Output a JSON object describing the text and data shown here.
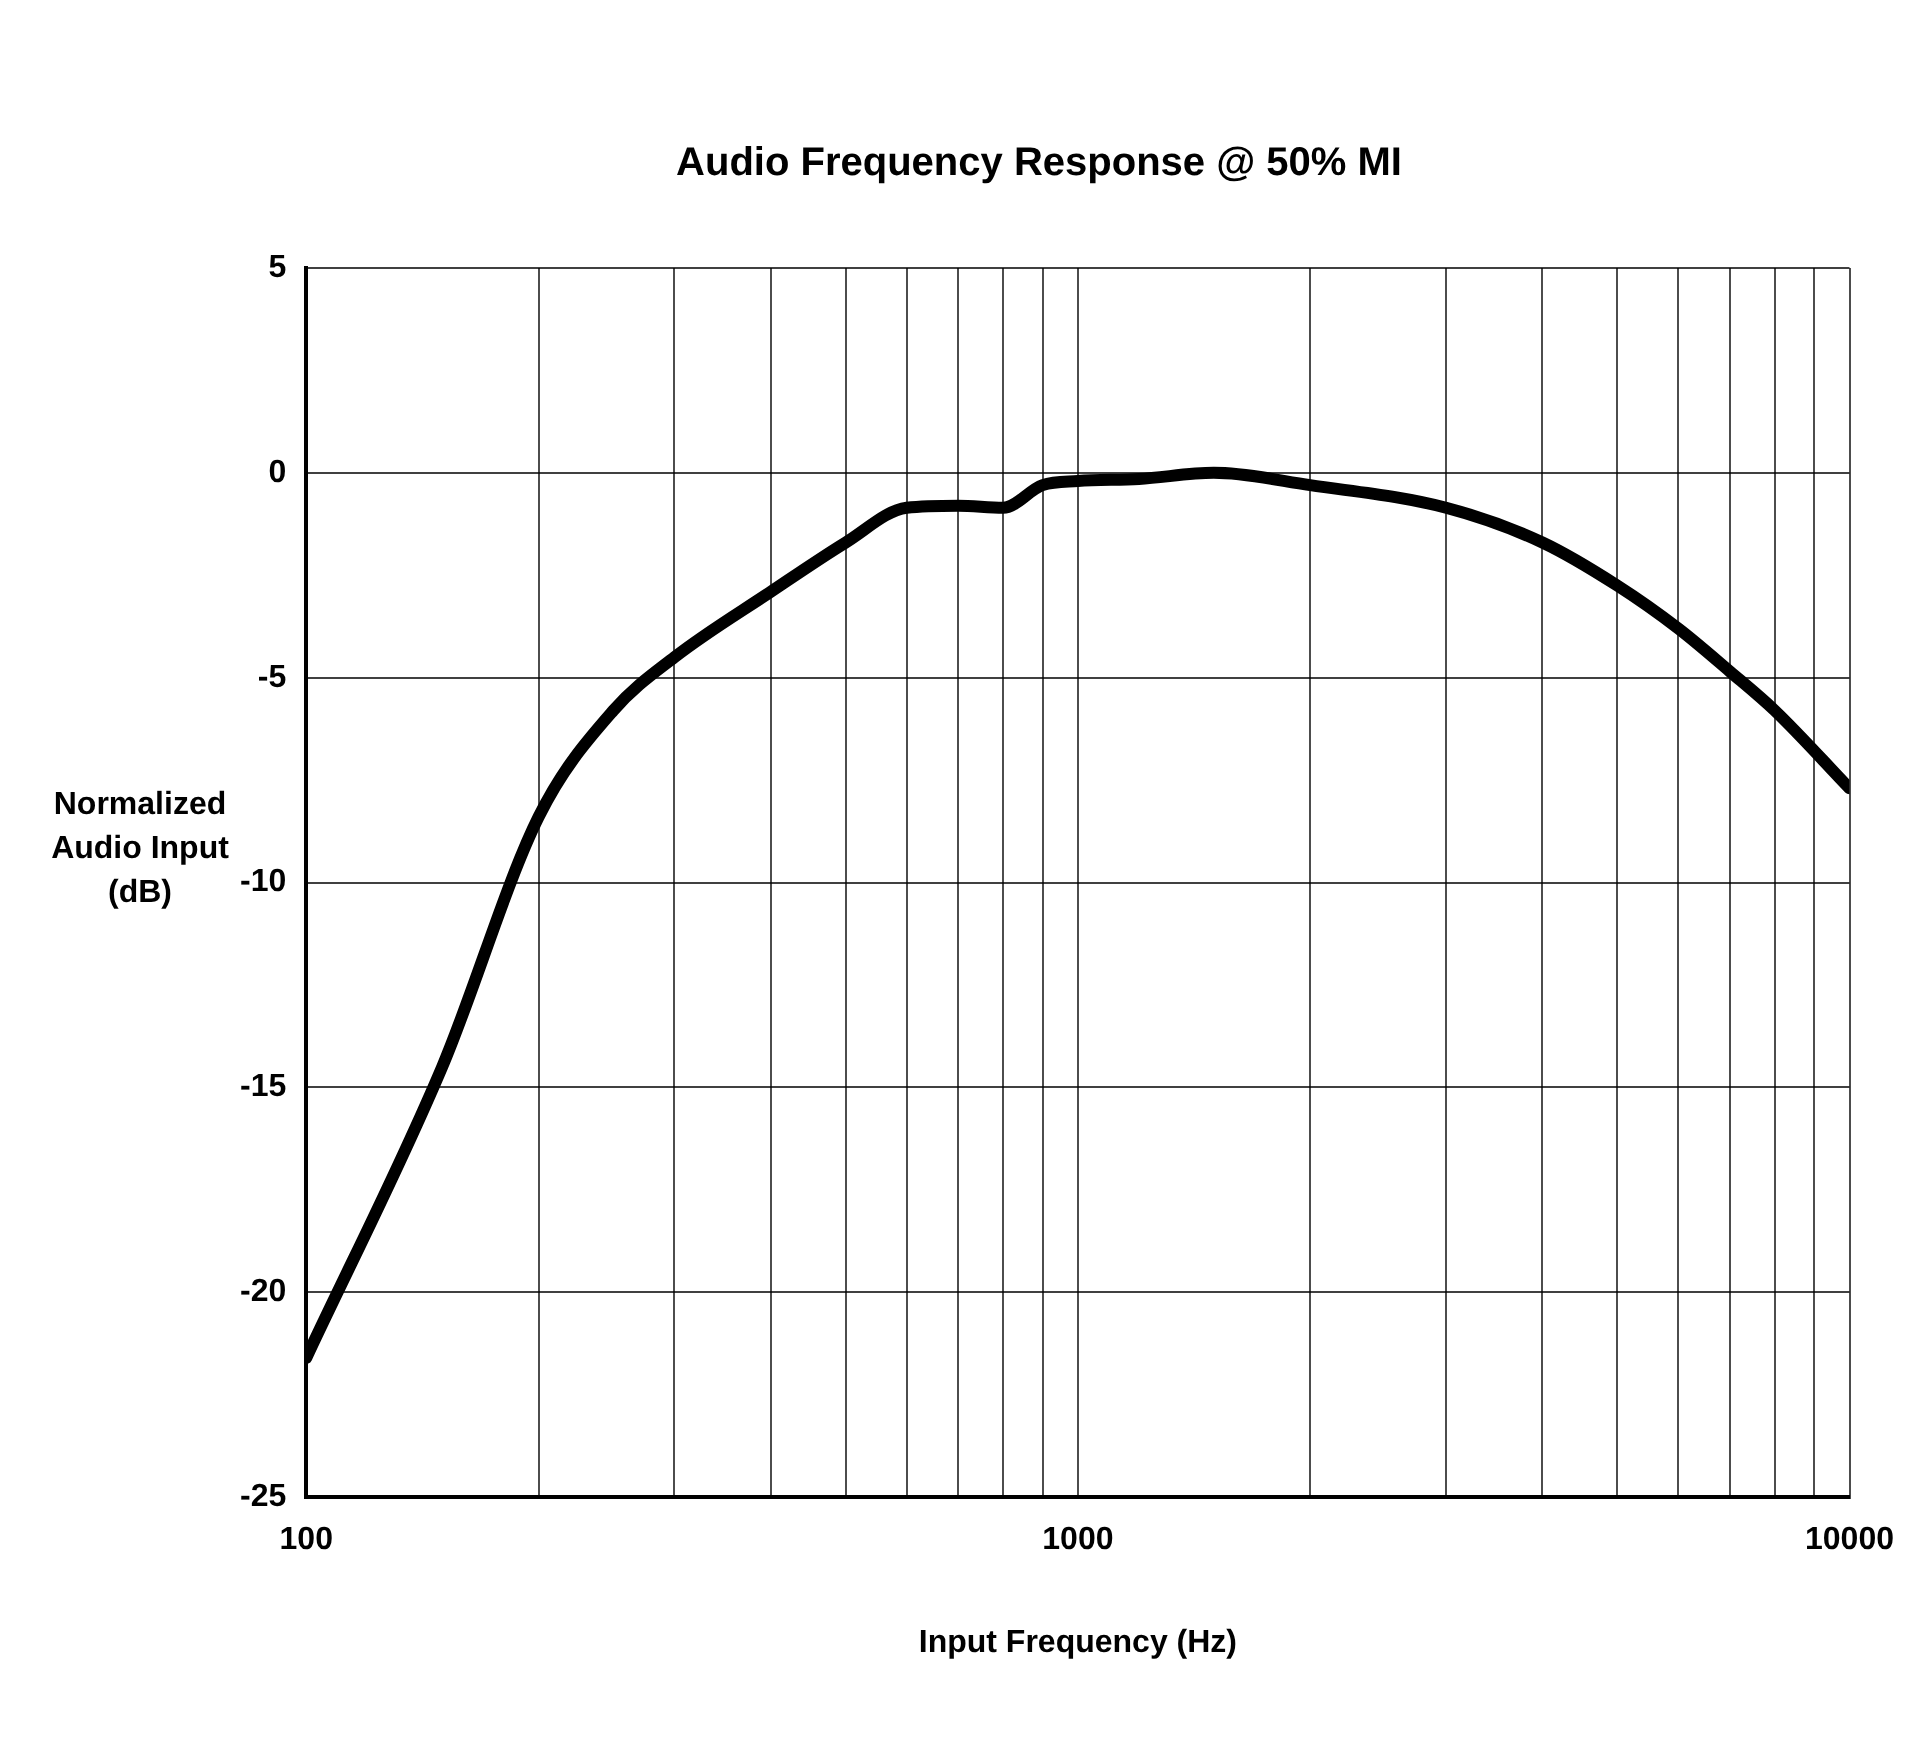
{
  "chart_data": {
    "type": "line",
    "title": "Audio Frequency Response @ 50% MI",
    "xlabel": "Input Frequency (Hz)",
    "ylabel": "Normalized Audio Input (dB)",
    "log": "x",
    "grid": true,
    "legend": false,
    "marker": "none",
    "line_style": "solid",
    "xlim": [
      100,
      10000
    ],
    "ylim": [
      -25,
      5
    ],
    "xticks": [
      100,
      {
        "value": 200,
        "label": null
      },
      {
        "value": 300,
        "label": null
      },
      {
        "value": 400,
        "label": null
      },
      {
        "value": 500,
        "label": null
      },
      {
        "value": 600,
        "label": null
      },
      {
        "value": 700,
        "label": null
      },
      {
        "value": 800,
        "label": null
      },
      {
        "value": 900,
        "label": null
      },
      1000,
      {
        "value": 2000,
        "label": null
      },
      {
        "value": 3000,
        "label": null
      },
      {
        "value": 4000,
        "label": null
      },
      {
        "value": 5000,
        "label": null
      },
      {
        "value": 6000,
        "label": null
      },
      {
        "value": 7000,
        "label": null
      },
      {
        "value": 8000,
        "label": null
      },
      {
        "value": 9000,
        "label": null
      },
      10000
    ],
    "yticks": [
      -25,
      -20,
      -15,
      -10,
      -5,
      0,
      5
    ],
    "series": [
      {
        "color": "#000000",
        "x": [
          100,
          150,
          200,
          250,
          300,
          400,
          500,
          600,
          700,
          800,
          900,
          1000,
          1200,
          1500,
          2000,
          3000,
          4000,
          5000,
          6000,
          7000,
          8000,
          10000
        ],
        "values": [
          -21.6,
          -14.5,
          -8.4,
          -5.8,
          -4.5,
          -2.9,
          -1.7,
          -0.85,
          -0.8,
          -0.85,
          -0.3,
          -0.2,
          -0.15,
          0,
          -0.3,
          -0.85,
          -1.7,
          -2.75,
          -3.8,
          -4.85,
          -5.8,
          -7.7
        ]
      }
    ]
  }
}
